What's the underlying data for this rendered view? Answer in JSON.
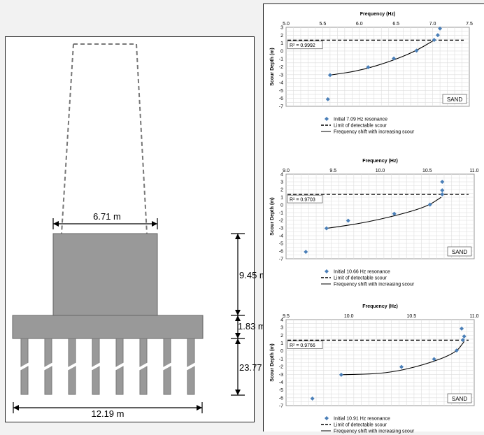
{
  "diagram": {
    "dims": {
      "cap_width": "6.71 m",
      "pier_height": "9.45 m",
      "pile_cap_thickness": "1.83 m",
      "pile_length": "23.77",
      "footing_width": "12.19 m"
    }
  },
  "chart_data": [
    {
      "type": "scatter",
      "title": "Frequency (Hz)",
      "xlabel": "Frequency (Hz)",
      "ylabel": "Scour Depth (m)",
      "xlim": [
        5.0,
        7.5
      ],
      "ylim": [
        -7,
        3
      ],
      "xticks": [
        "5.0",
        "5.5",
        "6.0",
        "6.5",
        "7.0",
        "7.5"
      ],
      "yticks": [
        "3",
        "2",
        "1",
        "0",
        "-1",
        "-2",
        "-3",
        "-4",
        "-5",
        "-6",
        "-7"
      ],
      "r2_label": "R² = 0.9992",
      "soil_label": "SAND",
      "detect_limit": 1.37,
      "points": [
        [
          5.57,
          -6.1
        ],
        [
          5.6,
          -3.05
        ],
        [
          6.12,
          -2.05
        ],
        [
          6.47,
          -0.95
        ],
        [
          6.78,
          0.05
        ],
        [
          7.02,
          1.4
        ],
        [
          7.07,
          2.0
        ],
        [
          7.1,
          2.85
        ]
      ],
      "fit": [
        [
          5.6,
          -3.05
        ],
        [
          6.0,
          -2.5
        ],
        [
          6.4,
          -1.4
        ],
        [
          6.75,
          -0.1
        ],
        [
          7.02,
          1.37
        ]
      ],
      "legend": [
        "Initial 7.09 Hz resonance",
        "Limit of detectable scour",
        "Frequency shift with increasing scour"
      ]
    },
    {
      "type": "scatter",
      "title": "Frequency (Hz)",
      "xlabel": "Frequency (Hz)",
      "ylabel": "Scour Depth (m)",
      "xlim": [
        9.0,
        11.0
      ],
      "ylim": [
        -7,
        4
      ],
      "xticks": [
        "9.0",
        "9.5",
        "10.0",
        "10.5",
        "11.0"
      ],
      "yticks": [
        "4",
        "3",
        "2",
        "1",
        "0",
        "-1",
        "-2",
        "-3",
        "-4",
        "-5",
        "-6",
        "-7"
      ],
      "r2_label": "R² = 0.9703",
      "soil_label": "SAND",
      "detect_limit": 1.37,
      "points": [
        [
          9.21,
          -6.1
        ],
        [
          9.43,
          -3.05
        ],
        [
          9.66,
          -2.05
        ],
        [
          10.15,
          -1.15
        ],
        [
          10.53,
          0.05
        ],
        [
          10.66,
          1.37
        ],
        [
          10.66,
          1.9
        ],
        [
          10.66,
          3.0
        ]
      ],
      "fit": [
        [
          9.43,
          -3.05
        ],
        [
          9.8,
          -2.4
        ],
        [
          10.2,
          -1.3
        ],
        [
          10.5,
          -0.2
        ],
        [
          10.65,
          1.0
        ]
      ],
      "legend": [
        "Initial 10.66 Hz resonance",
        "Limit of detectable scour",
        "Frequency shift with increasing scour"
      ]
    },
    {
      "type": "scatter",
      "title": "Frequency (Hz)",
      "xlabel": "Frequency (Hz)",
      "ylabel": "Scour Depth (m)",
      "xlim": [
        9.5,
        11.0
      ],
      "ylim": [
        -7,
        4
      ],
      "xticks": [
        "9.5",
        "10.0",
        "10.5",
        "11.0"
      ],
      "yticks": [
        "4",
        "3",
        "2",
        "1",
        "0",
        "-1",
        "-2",
        "-3",
        "-4",
        "-5",
        "-6",
        "-7"
      ],
      "r2_label": "R² = 0.9766",
      "soil_label": "SAND",
      "detect_limit": 1.37,
      "points": [
        [
          9.71,
          -6.1
        ],
        [
          9.94,
          -3.05
        ],
        [
          10.42,
          -2.05
        ],
        [
          10.68,
          -1.05
        ],
        [
          10.86,
          0.05
        ],
        [
          10.91,
          1.4
        ],
        [
          10.92,
          1.85
        ],
        [
          10.9,
          2.85
        ]
      ],
      "fit": [
        [
          9.94,
          -3.05
        ],
        [
          10.3,
          -2.9
        ],
        [
          10.6,
          -1.8
        ],
        [
          10.85,
          -0.3
        ],
        [
          10.92,
          1.2
        ]
      ],
      "legend": [
        "Initial 10.91 Hz resonance",
        "Limit of detectable scour",
        "Frequency shift with increasing scour"
      ]
    }
  ]
}
